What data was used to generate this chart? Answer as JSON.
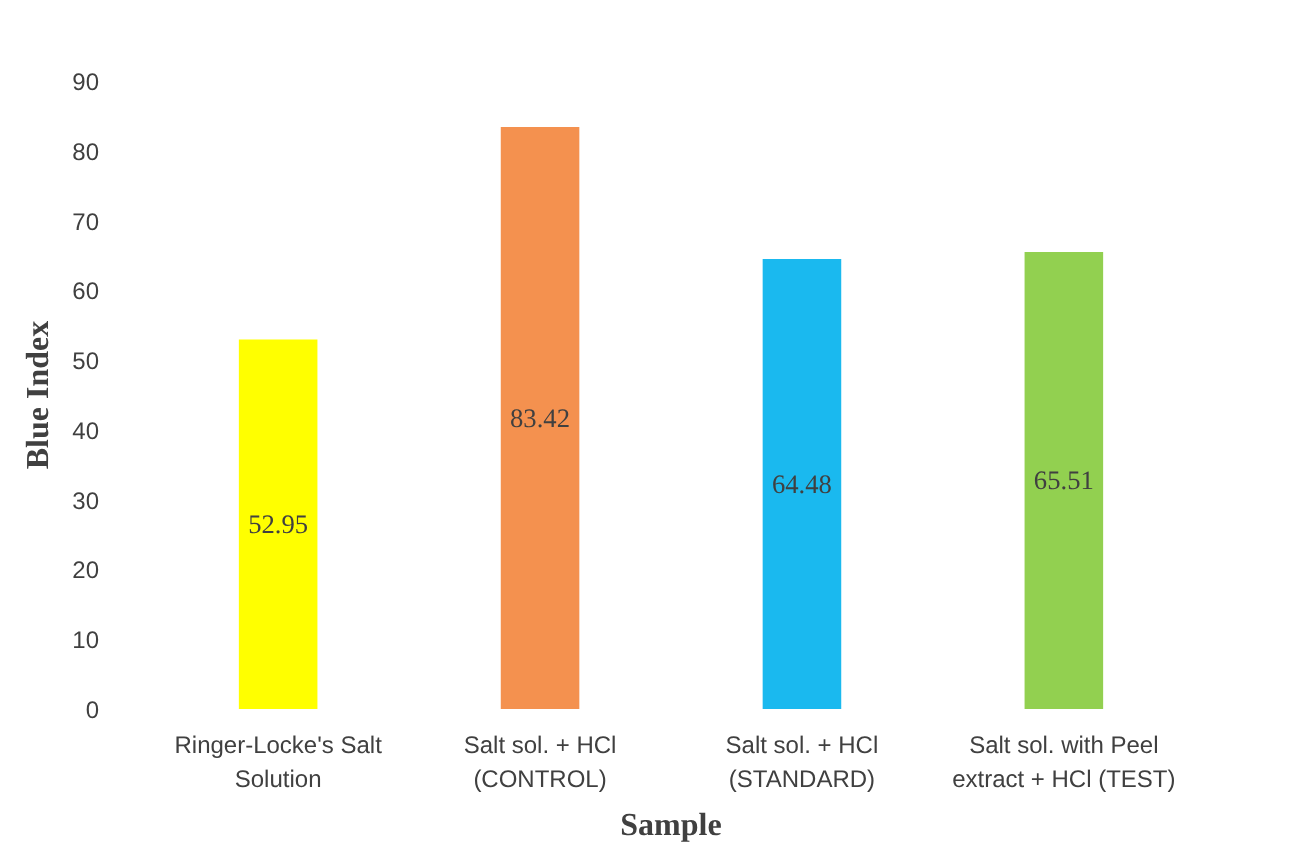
{
  "chart_data": {
    "type": "bar",
    "xlabel": "Sample",
    "ylabel": "Blue Index",
    "categories": [
      "Ringer-Locke's Salt Solution",
      "Salt sol. + HCl (CONTROL)",
      "Salt sol. + HCl (STANDARD)",
      "Salt sol. with Peel extract + HCl (TEST)"
    ],
    "values": [
      52.95,
      83.42,
      64.48,
      65.51
    ],
    "colors": [
      "#ffff00",
      "#f4914f",
      "#1ab9ef",
      "#92d050"
    ],
    "ylim": [
      0,
      90
    ],
    "yticks": [
      0,
      10,
      20,
      30,
      40,
      50,
      60,
      70,
      80,
      90
    ],
    "grid": false,
    "data_labels": true
  }
}
